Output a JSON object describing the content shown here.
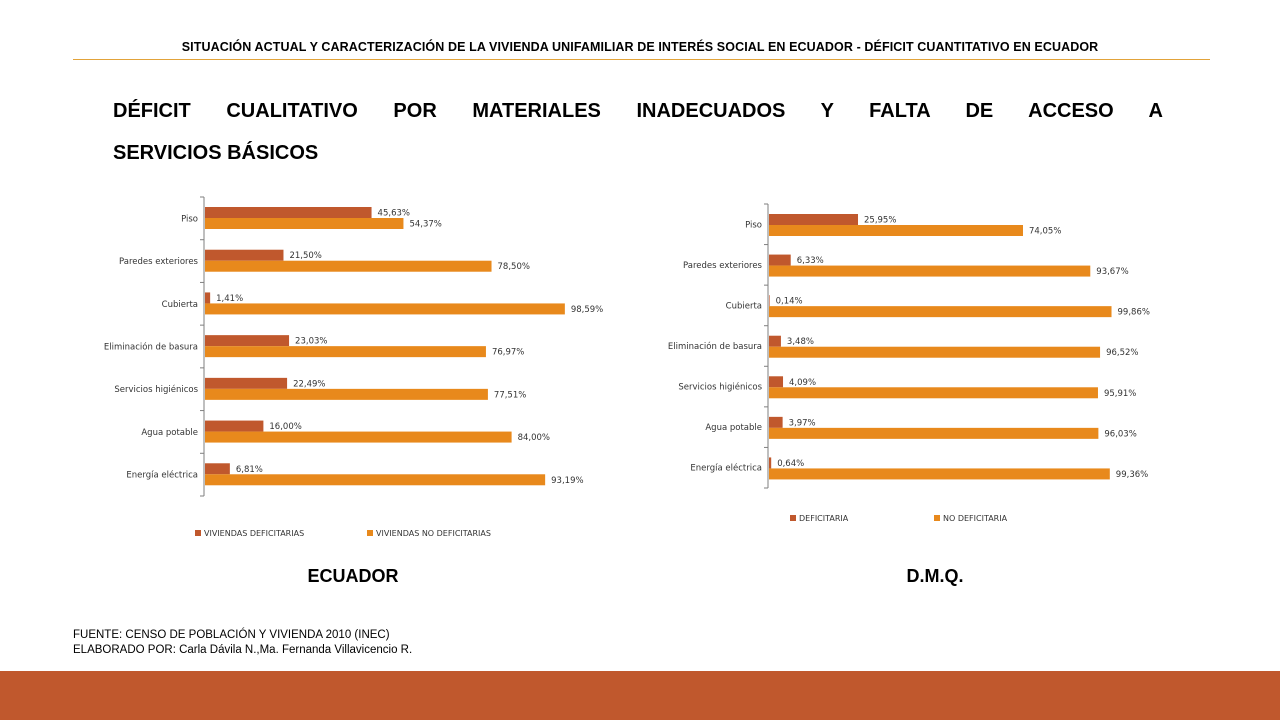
{
  "header": {
    "title": "SITUACIÓN ACTUAL Y CARACTERIZACIÓN DE LA VIVIENDA UNIFAMILIAR DE INTERÉS SOCIAL EN ECUADOR - DÉFICIT CUANTITATIVO  EN ECUADOR"
  },
  "main": {
    "title_line1": "DÉFICIT CUALITATIVO POR MATERIALES INADECUADOS Y FALTA DE ACCESO A",
    "title_line2": "SERVICIOS BÁSICOS"
  },
  "colors": {
    "deficit": "#c0582d",
    "no_deficit": "#e8891c",
    "axis": "#7f7f7f",
    "accent_rule": "#e2a33a"
  },
  "captions": {
    "left": "ECUADOR",
    "right": "D.M.Q."
  },
  "footer": {
    "source": "FUENTE:  CENSO DE POBLACIÓN Y VIVIENDA 2010 (INEC)",
    "authors": "ELABORADO POR: Carla  Dávila N.,Ma.  Fernanda  Villavicencio R."
  },
  "chart_data": [
    {
      "type": "bar",
      "orientation": "horizontal",
      "title": "",
      "categories": [
        "Piso",
        "Paredes exteriores",
        "Cubierta",
        "Eliminación de basura",
        "Servicios higiénicos",
        "Agua potable",
        "Energía eléctrica"
      ],
      "series": [
        {
          "name": "VIVIENDAS DEFICITARIAS",
          "values": [
            45.63,
            21.5,
            1.41,
            23.03,
            22.49,
            16.0,
            6.81
          ],
          "labels": [
            "45,63%",
            "21,50%",
            "1,41%",
            "23,03%",
            "22,49%",
            "16,00%",
            "6,81%"
          ]
        },
        {
          "name": "VIVIENDAS NO DEFICITARIAS",
          "values": [
            54.37,
            78.5,
            98.59,
            76.97,
            77.51,
            84.0,
            93.19
          ],
          "labels": [
            "54,37%",
            "78,50%",
            "98,59%",
            "76,97%",
            "77,51%",
            "84,00%",
            "93,19%"
          ]
        }
      ],
      "xlim": [
        0,
        100
      ],
      "legend": "bottom",
      "grid": false
    },
    {
      "type": "bar",
      "orientation": "horizontal",
      "title": "",
      "categories": [
        "Piso",
        "Paredes exteriores",
        "Cubierta",
        "Eliminación de basura",
        "Servicios higiénicos",
        "Agua potable",
        "Energía eléctrica"
      ],
      "series": [
        {
          "name": "DEFICITARIA",
          "values": [
            25.95,
            6.33,
            0.14,
            3.48,
            4.09,
            3.97,
            0.64
          ],
          "labels": [
            "25,95%",
            "6,33%",
            "0,14%",
            "3,48%",
            "4,09%",
            "3,97%",
            "0,64%"
          ]
        },
        {
          "name": "NO DEFICITARIA",
          "values": [
            74.05,
            93.67,
            99.86,
            96.52,
            95.91,
            96.03,
            99.36
          ],
          "labels": [
            "74,05%",
            "93,67%",
            "99,86%",
            "96,52%",
            "95,91%",
            "96,03%",
            "99,36%"
          ]
        }
      ],
      "xlim": [
        0,
        100
      ],
      "legend": "bottom",
      "grid": false
    }
  ]
}
